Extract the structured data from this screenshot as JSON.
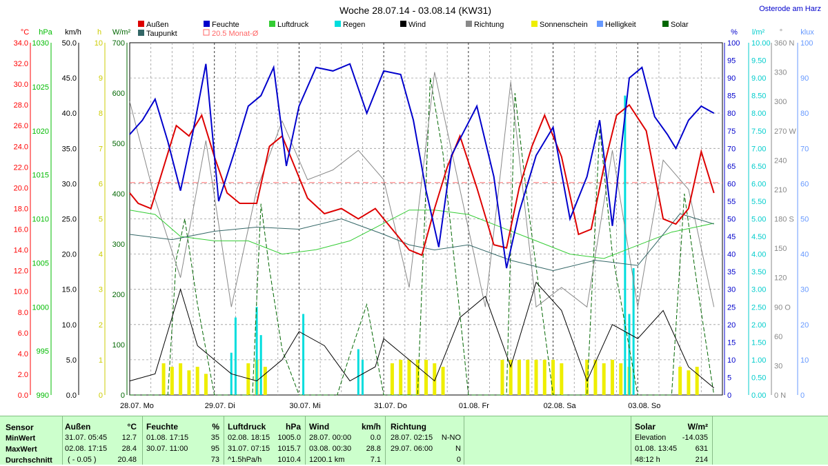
{
  "chart_data": {
    "type": "line",
    "title": "Woche 28.07.14 - 03.08.14 (KW31)",
    "station": "Osterode am Harz",
    "x_ticks": [
      "28.07. Mo",
      "29.07. Di",
      "30.07. Mi",
      "31.07. Do",
      "01.08. Fr",
      "02.08. Sa",
      "03.08. So"
    ],
    "left_axes": [
      {
        "unit": "°C",
        "color": "#ff0000",
        "ticks": [
          "34.0",
          "32.0",
          "30.0",
          "28.0",
          "26.0",
          "24.0",
          "22.0",
          "20.0",
          "18.0",
          "16.0",
          "14.0",
          "12.0",
          "10.0",
          "8.0",
          "6.0",
          "4.0",
          "2.0",
          "0.0"
        ]
      },
      {
        "unit": "hPa",
        "color": "#00bb00",
        "ticks": [
          "1030",
          "1025",
          "1020",
          "1015",
          "1010",
          "1005",
          "1000",
          "995",
          "990"
        ]
      },
      {
        "unit": "km/h",
        "color": "#000000",
        "ticks": [
          "50.0",
          "45.0",
          "40.0",
          "35.0",
          "30.0",
          "25.0",
          "20.0",
          "15.0",
          "10.0",
          "5.0",
          "0.0"
        ]
      },
      {
        "unit": "h",
        "color": "#cccc00",
        "ticks": [
          "10",
          "9",
          "8",
          "7",
          "6",
          "5",
          "4",
          "3",
          "2",
          "1",
          "0"
        ]
      },
      {
        "unit": "W/m²",
        "color": "#006600",
        "ticks": [
          "700",
          "600",
          "500",
          "400",
          "300",
          "200",
          "100",
          "0"
        ]
      }
    ],
    "right_axes": [
      {
        "unit": "%",
        "color": "#0000cc",
        "ticks": [
          "100",
          "95",
          "90",
          "85",
          "80",
          "75",
          "70",
          "65",
          "60",
          "55",
          "50",
          "45",
          "40",
          "35",
          "30",
          "25",
          "20",
          "15",
          "10",
          "5",
          "0"
        ]
      },
      {
        "unit": "l/m²",
        "color": "#00cccc",
        "ticks": [
          "10.00",
          "9.50",
          "9.00",
          "8.50",
          "8.00",
          "7.50",
          "7.00",
          "6.50",
          "6.00",
          "5.50",
          "5.00",
          "4.50",
          "4.00",
          "3.50",
          "3.00",
          "2.50",
          "2.00",
          "1.50",
          "1.00",
          "0.50",
          "0.00"
        ]
      },
      {
        "unit": "°",
        "color": "#888888",
        "ticks": [
          "360 N",
          "330",
          "300",
          "270 W",
          "240",
          "210",
          "180 S",
          "150",
          "120",
          "90  O",
          "60",
          "30",
          "0   N"
        ]
      },
      {
        "unit": "klux",
        "color": "#6699ff",
        "ticks": [
          "100",
          "90",
          "80",
          "70",
          "60",
          "50",
          "40",
          "30",
          "20",
          "10",
          "0"
        ]
      }
    ],
    "legend": [
      {
        "name": "Außen",
        "color": "#dd0000"
      },
      {
        "name": "Taupunkt",
        "color": "#336666"
      },
      {
        "name": "Feuchte",
        "color": "#0000cc"
      },
      {
        "name": "20.5 Monat-Ø",
        "color": "#ff6666"
      },
      {
        "name": "Luftdruck",
        "color": "#33cc33"
      },
      {
        "name": "Regen",
        "color": "#00dddd"
      },
      {
        "name": "Wind",
        "color": "#000000"
      },
      {
        "name": "Richtung",
        "color": "#888888"
      },
      {
        "name": "Sonnenschein",
        "color": "#eeee00"
      },
      {
        "name": "Helligkeit",
        "color": "#6699ff"
      },
      {
        "name": "Solar",
        "color": "#006600"
      }
    ],
    "monthly_mean_temp": 20.5,
    "series": [
      {
        "name": "Außen",
        "unit": "°C",
        "x": [
          0,
          0.1,
          0.25,
          0.4,
          0.55,
          0.7,
          0.85,
          1.0,
          1.15,
          1.3,
          1.5,
          1.65,
          1.8,
          1.95,
          2.1,
          2.3,
          2.5,
          2.7,
          2.9,
          3.1,
          3.3,
          3.45,
          3.6,
          3.75,
          3.9,
          4.1,
          4.3,
          4.45,
          4.6,
          4.75,
          4.9,
          5.1,
          5.3,
          5.45,
          5.6,
          5.75,
          5.9,
          6.1,
          6.3,
          6.45,
          6.6,
          6.75,
          6.9
        ],
        "y": [
          19.5,
          18.5,
          18,
          22,
          26,
          25,
          27,
          23,
          19.5,
          18.5,
          18.5,
          24,
          25,
          22,
          19,
          17.5,
          18,
          17,
          18,
          16,
          14,
          13.5,
          18,
          22,
          25,
          20,
          14.5,
          14.2,
          20,
          24,
          27,
          23,
          15.5,
          16,
          22,
          27,
          28,
          25.5,
          17,
          16.5,
          18,
          23.5,
          19.5
        ]
      },
      {
        "name": "Taupunkt",
        "unit": "°C",
        "x": [
          0,
          0.5,
          1.0,
          1.5,
          2.0,
          2.5,
          3.0,
          3.3,
          3.6,
          4.0,
          4.5,
          5.0,
          5.5,
          6.0,
          6.5,
          6.9
        ],
        "y": [
          15.5,
          15,
          15.8,
          16.2,
          16,
          17,
          15.5,
          14.5,
          14,
          14.5,
          13,
          12,
          13,
          12.5,
          17.5,
          16.5
        ]
      },
      {
        "name": "Feuchte",
        "unit": "%",
        "x": [
          0,
          0.15,
          0.3,
          0.45,
          0.6,
          0.75,
          0.9,
          1.05,
          1.25,
          1.4,
          1.55,
          1.7,
          1.85,
          2.0,
          2.2,
          2.4,
          2.6,
          2.8,
          3.0,
          3.2,
          3.35,
          3.5,
          3.65,
          3.8,
          3.95,
          4.1,
          4.3,
          4.45,
          4.6,
          4.8,
          5.0,
          5.2,
          5.4,
          5.55,
          5.7,
          5.9,
          6.05,
          6.2,
          6.35,
          6.45,
          6.6,
          6.75,
          6.9
        ],
        "y": [
          74,
          78,
          84,
          72,
          58,
          75,
          94,
          55,
          70,
          82,
          85,
          93,
          65,
          82,
          93,
          92,
          94,
          80,
          92,
          91,
          78,
          58,
          42,
          68,
          75,
          82,
          62,
          36,
          52,
          68,
          76,
          50,
          62,
          78,
          48,
          90,
          93,
          79,
          74,
          70,
          78,
          82,
          80
        ]
      },
      {
        "name": "Luftdruck",
        "unit": "hPa",
        "x": [
          0,
          0.3,
          0.6,
          1.0,
          1.4,
          1.8,
          2.2,
          2.6,
          3.0,
          3.3,
          3.6,
          4.0,
          4.4,
          4.8,
          5.2,
          5.6,
          6.0,
          6.4,
          6.9
        ],
        "y": [
          1011,
          1010.5,
          1008,
          1007.5,
          1007.5,
          1006,
          1006.5,
          1007.5,
          1009.5,
          1011,
          1011,
          1010.5,
          1009,
          1007.5,
          1006,
          1005.5,
          1007,
          1008.5,
          1009.5
        ]
      },
      {
        "name": "Wind",
        "unit": "km/h",
        "x": [
          0,
          0.3,
          0.6,
          0.8,
          1.0,
          1.2,
          1.5,
          1.8,
          2.0,
          2.3,
          2.6,
          2.9,
          3.0,
          3.3,
          3.6,
          3.9,
          4.2,
          4.5,
          4.8,
          5.1,
          5.4,
          5.7,
          6.0,
          6.3,
          6.6,
          6.9
        ],
        "y": [
          2,
          3,
          15,
          7,
          5,
          3,
          2,
          5,
          9,
          7,
          2,
          4,
          8,
          5,
          2,
          11,
          14,
          4,
          16,
          12,
          2,
          10,
          8,
          12,
          4,
          1
        ]
      },
      {
        "name": "Richtung",
        "unit": "°",
        "x": [
          0,
          0.3,
          0.6,
          0.9,
          1.2,
          1.5,
          1.8,
          2.1,
          2.4,
          2.7,
          3.0,
          3.3,
          3.6,
          3.9,
          4.2,
          4.5,
          4.8,
          5.1,
          5.4,
          5.7,
          6.0,
          6.3,
          6.6,
          6.9
        ],
        "y": [
          300,
          200,
          120,
          260,
          90,
          210,
          280,
          220,
          230,
          250,
          220,
          110,
          330,
          210,
          90,
          320,
          90,
          110,
          90,
          250,
          90,
          240,
          210,
          90
        ]
      },
      {
        "name": "Solar",
        "unit": "W/m²",
        "x": [
          0,
          0.45,
          0.55,
          0.65,
          0.8,
          1.0,
          1.45,
          1.55,
          1.65,
          1.8,
          2.0,
          2.45,
          2.6,
          2.8,
          3.0,
          3.4,
          3.55,
          3.7,
          4.0,
          4.45,
          4.55,
          4.7,
          5.0,
          5.4,
          5.55,
          5.7,
          6.0,
          6.4,
          6.55,
          6.7,
          6.9
        ],
        "y": [
          0,
          0,
          270,
          350,
          180,
          0,
          0,
          380,
          250,
          90,
          0,
          0,
          80,
          180,
          0,
          0,
          630,
          480,
          0,
          0,
          600,
          380,
          0,
          0,
          530,
          280,
          0,
          0,
          400,
          220,
          0
        ]
      },
      {
        "name": "Regen",
        "unit": "l/m²",
        "x": [
          1.2,
          1.25,
          1.5,
          1.55,
          2.05,
          2.7,
          2.75,
          5.85,
          5.9,
          5.95
        ],
        "y": [
          1.2,
          2.2,
          2.5,
          1.7,
          2.3,
          1.3,
          1.0,
          8.5,
          2.3,
          3.6
        ]
      },
      {
        "name": "Sonnenschein",
        "unit": "h",
        "x": [
          0.4,
          0.5,
          0.6,
          0.7,
          0.8,
          0.9,
          1.4,
          1.5,
          1.6,
          3.1,
          3.2,
          3.3,
          3.4,
          3.5,
          3.6,
          3.7,
          4.4,
          4.5,
          4.6,
          4.7,
          4.8,
          4.9,
          5.0,
          5.1,
          5.4,
          5.5,
          5.6,
          5.7,
          5.8,
          5.9,
          6.5,
          6.6,
          6.7
        ],
        "y": [
          0.9,
          0.8,
          0.9,
          0.7,
          0.8,
          0.6,
          0.9,
          1.0,
          0.8,
          0.9,
          1.0,
          1.0,
          1.0,
          1.0,
          0.9,
          0.8,
          1.0,
          1.0,
          1.0,
          1.0,
          1.0,
          1.0,
          1.0,
          0.9,
          1.0,
          1.0,
          0.9,
          1.0,
          0.9,
          0.8,
          0.8,
          0.7,
          0.8
        ]
      }
    ]
  },
  "table": {
    "sensor": {
      "header": "Sensor",
      "rows": [
        "MinWert",
        "MaxWert",
        "Durchschnitt"
      ]
    },
    "aussen": {
      "header": "Außen",
      "unit": "°C",
      "rows": [
        [
          "31.07.  05:45",
          "12.7"
        ],
        [
          "02.08.  17:15",
          "28.4"
        ],
        [
          "( - 0.05 )",
          "20.48"
        ]
      ]
    },
    "feuchte": {
      "header": "Feuchte",
      "unit": "%",
      "rows": [
        [
          "01.08.  17:15",
          "35"
        ],
        [
          "30.07.  11:00",
          "95"
        ],
        [
          "",
          "73"
        ]
      ]
    },
    "luftdruck": {
      "header": "Luftdruck",
      "unit": "hPa",
      "rows": [
        [
          "02.08.  18:15",
          "1005.0"
        ],
        [
          "31.07.  07:15",
          "1015.7"
        ],
        [
          "^1.5hPa/h",
          "1010.4"
        ]
      ]
    },
    "wind": {
      "header": "Wind",
      "unit": "km/h",
      "rows": [
        [
          "28.07.  00:00",
          "0.0"
        ],
        [
          "03.08.  00:30",
          "28.8"
        ],
        [
          "1200.1 km",
          "7.1"
        ]
      ]
    },
    "richtung": {
      "header": "Richtung",
      "rows": [
        [
          "28.07.  02:15",
          "N-NO"
        ],
        [
          "29.07.  06:00",
          "N"
        ],
        [
          "",
          "0"
        ]
      ]
    },
    "solar": {
      "header": "Solar",
      "unit": "W/m²",
      "rows": [
        [
          "Elevation",
          "-14.035"
        ],
        [
          "01.08.  13:45",
          "631"
        ],
        [
          "48:12 h",
          "214"
        ]
      ]
    }
  }
}
